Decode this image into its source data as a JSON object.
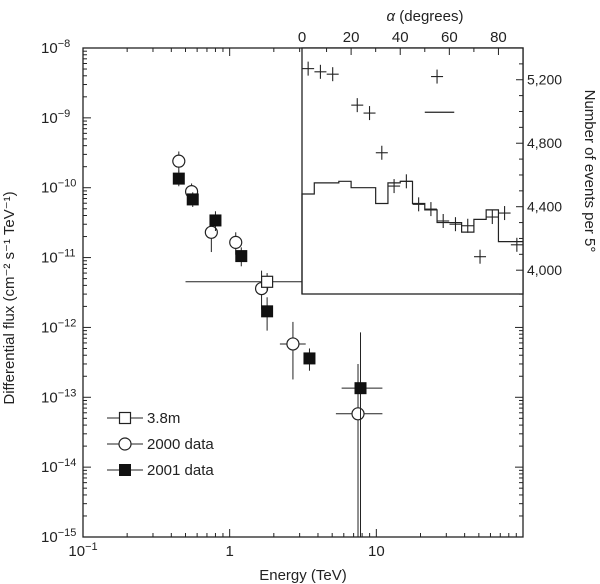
{
  "chart_data": [
    {
      "type": "scatter",
      "scale": "log-log",
      "xlabel": "Energy (TeV)",
      "ylabel": "Differential flux (cm⁻² s⁻¹ TeV⁻¹)",
      "xlim": [
        0.1,
        100
      ],
      "ylim": [
        1e-15,
        1e-08
      ],
      "x_ticks": [
        {
          "value": 0.1,
          "base": "10",
          "exp": "−1"
        },
        {
          "value": 1,
          "label": "1"
        },
        {
          "value": 10,
          "label": "10"
        }
      ],
      "y_ticks": [
        {
          "value": 1e-08,
          "base": "10",
          "exp": "−8"
        },
        {
          "value": 1e-09,
          "base": "10",
          "exp": "−9"
        },
        {
          "value": 1e-10,
          "base": "10",
          "exp": "−10"
        },
        {
          "value": 1e-11,
          "base": "10",
          "exp": "−11"
        },
        {
          "value": 1e-12,
          "base": "10",
          "exp": "−12"
        },
        {
          "value": 1e-13,
          "base": "10",
          "exp": "−13"
        },
        {
          "value": 1e-14,
          "base": "10",
          "exp": "−14"
        },
        {
          "value": 1e-15,
          "base": "10",
          "exp": "−15"
        }
      ],
      "legend_position": "bottom-left",
      "series": [
        {
          "name": "3.8m",
          "marker": "open-square",
          "points": [
            {
              "x": 1.8,
              "y": 4.5e-12,
              "x_err": [
                0.5,
                4.4
              ],
              "y_err": [
                3.3e-12,
                6e-12
              ]
            }
          ]
        },
        {
          "name": "2000 data",
          "marker": "open-circle",
          "points": [
            {
              "x": 0.45,
              "y": 2.4e-10,
              "y_err": [
                1.7e-10,
                3.3e-10
              ]
            },
            {
              "x": 0.55,
              "y": 8.8e-11,
              "y_err": [
                6.6e-11,
                1.15e-10
              ]
            },
            {
              "x": 0.75,
              "y": 2.3e-11,
              "y_err": [
                1.2e-11,
                3.8e-11
              ]
            },
            {
              "x": 1.1,
              "y": 1.65e-11,
              "y_err": [
                1.1e-11,
                2.3e-11
              ]
            },
            {
              "x": 1.65,
              "y": 3.6e-12,
              "y_err": [
                1.8e-12,
                6.5e-12
              ]
            },
            {
              "x": 2.7,
              "y": 5.8e-13,
              "x_err": [
                2.2,
                3.3
              ],
              "y_err": [
                1.8e-13,
                1.2e-12
              ]
            },
            {
              "x": 7.5,
              "y": 5.8e-14,
              "x_err": [
                5.3,
                11
              ],
              "y_err": [
                1e-15,
                3e-13
              ]
            }
          ]
        },
        {
          "name": "2001 data",
          "marker": "filled-square",
          "points": [
            {
              "x": 0.45,
              "y": 1.35e-10,
              "y_err": [
                1.05e-10,
                1.75e-10
              ]
            },
            {
              "x": 0.56,
              "y": 6.8e-11,
              "y_err": [
                5.3e-11,
                8.6e-11
              ]
            },
            {
              "x": 0.8,
              "y": 3.4e-11,
              "y_err": [
                2.4e-11,
                4.6e-11
              ]
            },
            {
              "x": 1.2,
              "y": 1.05e-11,
              "y_err": [
                7.5e-12,
                1.4e-11
              ]
            },
            {
              "x": 1.8,
              "y": 1.7e-12,
              "y_err": [
                9e-13,
                2.7e-12
              ]
            },
            {
              "x": 3.5,
              "y": 3.6e-13,
              "y_err": [
                2.4e-13,
                5e-13
              ]
            },
            {
              "x": 7.8,
              "y": 1.35e-13,
              "x_err": [
                5.8,
                11
              ],
              "y_err": [
                1e-15,
                8.5e-13
              ]
            }
          ]
        }
      ]
    },
    {
      "type": "histogram-with-points",
      "position": "inset top-right",
      "xlabel_symbol": "α",
      "xlabel_text": " (degrees)",
      "ylabel": "Number of events per 5°",
      "xlim": [
        0,
        90
      ],
      "ylim": [
        3850,
        5400
      ],
      "x_ticks": [
        0,
        20,
        40,
        60,
        80
      ],
      "y_ticks": [
        {
          "value": 4000,
          "label": "4,000"
        },
        {
          "value": 4400,
          "label": "4,400"
        },
        {
          "value": 4800,
          "label": "4,800"
        },
        {
          "value": 5200,
          "label": "5,200"
        }
      ],
      "points": [
        {
          "x": 2.5,
          "y": 5270
        },
        {
          "x": 7.5,
          "y": 5250
        },
        {
          "x": 12.5,
          "y": 5235
        },
        {
          "x": 22.5,
          "y": 5040
        },
        {
          "x": 27.5,
          "y": 4990
        },
        {
          "x": 32.5,
          "y": 4740
        },
        {
          "x": 37.5,
          "y": 4530
        },
        {
          "x": 42.5,
          "y": 4560
        },
        {
          "x": 47.5,
          "y": 4415
        },
        {
          "x": 52.5,
          "y": 4385
        },
        {
          "x": 57.5,
          "y": 4310
        },
        {
          "x": 62.5,
          "y": 4290
        },
        {
          "x": 67.5,
          "y": 4280
        },
        {
          "x": 72.5,
          "y": 4085
        },
        {
          "x": 77.5,
          "y": 4335
        },
        {
          "x": 82.5,
          "y": 4360
        },
        {
          "x": 87.5,
          "y": 4160
        }
      ],
      "outlier": {
        "x": 55,
        "y": 5220
      },
      "reference_line": {
        "x_start": 50,
        "x_end": 62,
        "y": 4995
      },
      "histogram": {
        "bin_edges": [
          0,
          5,
          10,
          15,
          20,
          25,
          30,
          35,
          40,
          45,
          50,
          55,
          60,
          65,
          70,
          75,
          80,
          85,
          90
        ],
        "values": [
          4480,
          4550,
          4550,
          4560,
          4520,
          4520,
          4420,
          4550,
          4560,
          4420,
          4380,
          4300,
          4300,
          4240,
          4320,
          4380,
          4180,
          4180
        ]
      }
    }
  ]
}
